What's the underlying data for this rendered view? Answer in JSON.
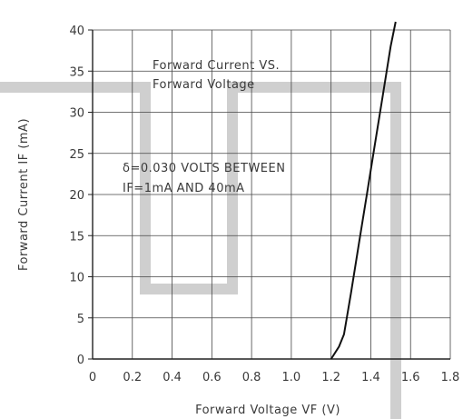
{
  "chart_data": {
    "type": "line",
    "title": "Forward Current VS. Forward Voltage",
    "title_lines": [
      "Forward Current VS.",
      "Forward Voltage"
    ],
    "xlabel": "Forward Voltage VF (V)",
    "ylabel": "Forward Current IF (mA)",
    "xlim": [
      0,
      1.8
    ],
    "ylim": [
      0,
      40
    ],
    "x_ticks": [
      0,
      0.2,
      0.4,
      0.6,
      0.8,
      1.0,
      1.2,
      1.4,
      1.6,
      1.8
    ],
    "x_tick_labels": [
      "0",
      "0.2",
      "0.4",
      "0.6",
      "0.8",
      "1.0",
      "1.2",
      "1.4",
      "1.6",
      "1.8"
    ],
    "y_ticks": [
      0,
      5,
      10,
      15,
      20,
      25,
      30,
      35,
      40
    ],
    "y_tick_labels": [
      "0",
      "5",
      "10",
      "15",
      "20",
      "25",
      "30",
      "35",
      "40"
    ],
    "grid": true,
    "annotation_lines": [
      "δ=0.030 VOLTS BETWEEN",
      "IF=1mA AND 40mA"
    ],
    "series": [
      {
        "x": [
          1.2,
          1.24,
          1.265,
          1.3,
          1.34,
          1.38,
          1.42,
          1.46,
          1.5,
          1.525
        ],
        "y": [
          0,
          1.5,
          3,
          8,
          14,
          20,
          26,
          32,
          38,
          41
        ]
      }
    ],
    "colors": {
      "line": "#111111",
      "grid": "#444444",
      "watermark": "#cfcfcf"
    }
  }
}
